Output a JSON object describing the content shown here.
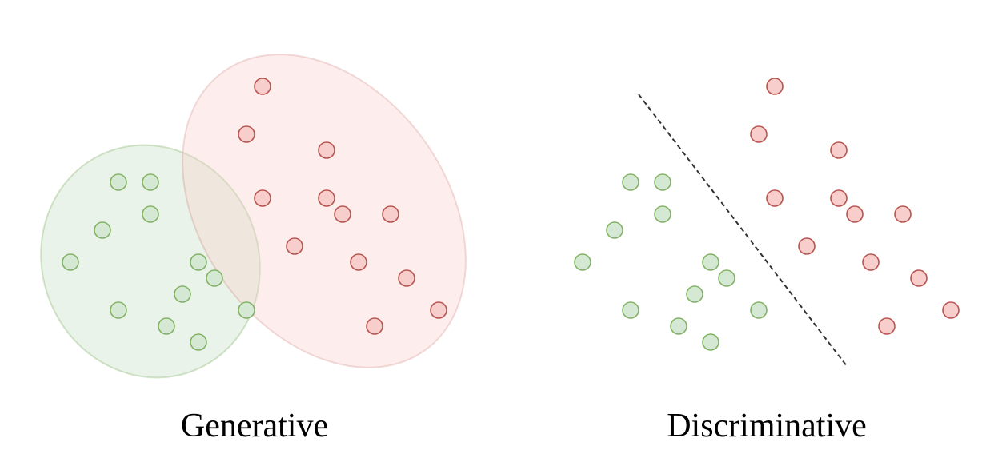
{
  "panels": {
    "generative": {
      "caption": "Generative"
    },
    "discriminative": {
      "caption": "Discriminative"
    }
  },
  "colors": {
    "class_a_fill": "#d5e8d4",
    "class_a_stroke": "#82b366",
    "class_b_fill": "#f8cecc",
    "class_b_stroke": "#b85450",
    "region_a_fill": "#d5e8d4",
    "region_b_fill": "#f8cecc",
    "boundary_stroke": "#333333"
  }
}
